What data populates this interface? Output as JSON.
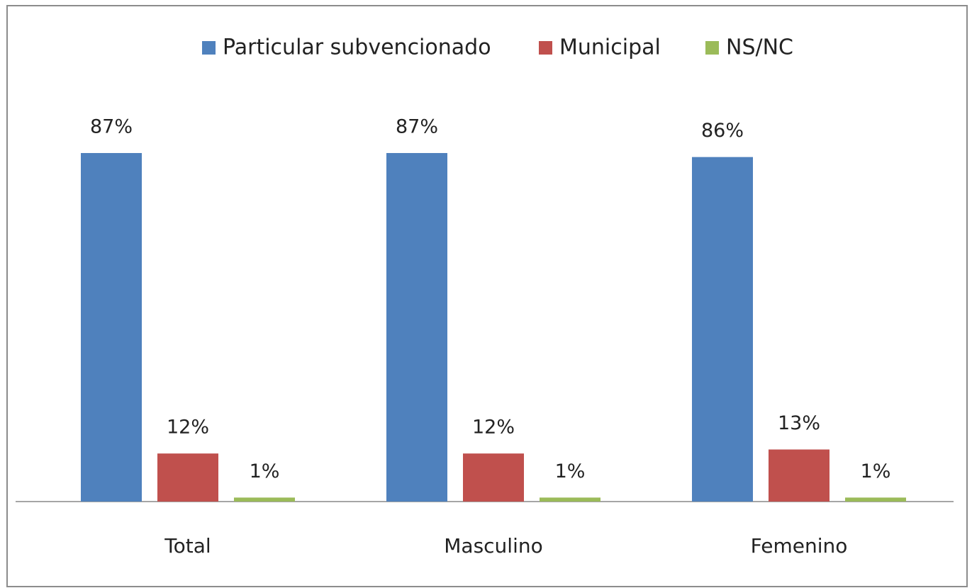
{
  "chart_data": {
    "type": "bar",
    "categories": [
      "Total",
      "Masculino",
      "Femenino"
    ],
    "series": [
      {
        "name": "Particular subvencionado",
        "color": "#4f81bd",
        "values": [
          87,
          87,
          86
        ],
        "value_labels": [
          "87%",
          "87%",
          "86%"
        ]
      },
      {
        "name": "Municipal",
        "color": "#c0504d",
        "values": [
          12,
          12,
          13
        ],
        "value_labels": [
          "12%",
          "12%",
          "13%"
        ]
      },
      {
        "name": "NS/NC",
        "color": "#9bbb59",
        "values": [
          1,
          1,
          1
        ],
        "value_labels": [
          "1%",
          "1%",
          "1%"
        ]
      }
    ],
    "legend": "top"
  }
}
